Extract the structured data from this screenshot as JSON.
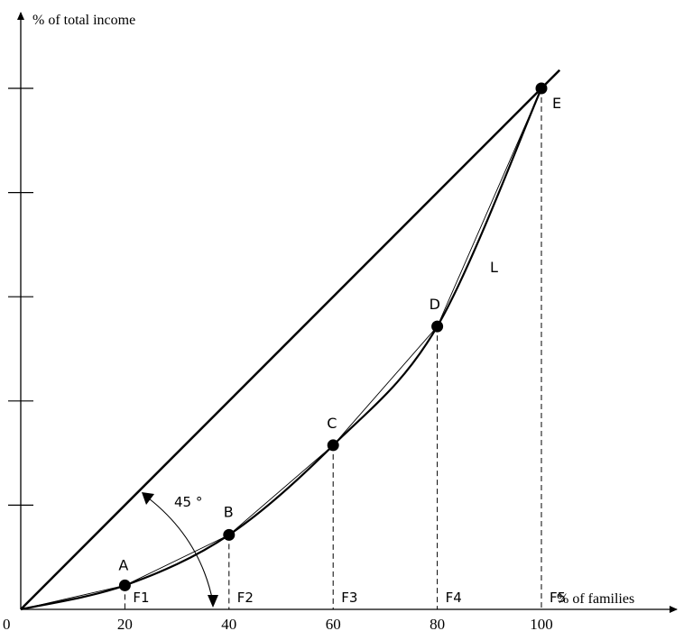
{
  "chart_data": {
    "type": "line",
    "title": "",
    "ylabel": "% of total income",
    "xlabel": "% of families",
    "xlim": [
      0,
      100
    ],
    "ylim": [
      0,
      100
    ],
    "x_ticks": [
      "0",
      "20",
      "40",
      "60",
      "80",
      "100"
    ],
    "y_tick_count": 5,
    "grid": false,
    "legend": "none",
    "equality_line": {
      "x": [
        0,
        100
      ],
      "y": [
        0,
        100
      ]
    },
    "angle_label": "45 °",
    "curve_label": "L",
    "points": [
      {
        "label": "A",
        "x": 20,
        "y": 4.6
      },
      {
        "label": "B",
        "x": 40,
        "y": 14.3
      },
      {
        "label": "C",
        "x": 60,
        "y": 31.5
      },
      {
        "label": "D",
        "x": 80,
        "y": 54.3
      },
      {
        "label": "E",
        "x": 100,
        "y": 100
      }
    ],
    "guide_labels": [
      "F1",
      "F2",
      "F3",
      "F4",
      "F5"
    ],
    "colors": {
      "ink": "#000000",
      "background": "#ffffff"
    }
  }
}
